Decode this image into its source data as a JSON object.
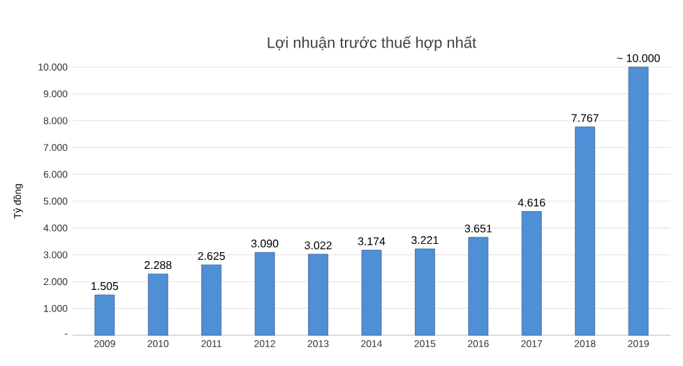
{
  "chart_data": {
    "type": "bar",
    "title": "Lợi nhuận trước thuế hợp nhất",
    "ylabel": "Tỷ đồng",
    "categories": [
      "2009",
      "2010",
      "2011",
      "2012",
      "2013",
      "2014",
      "2015",
      "2016",
      "2017",
      "2018",
      "2019"
    ],
    "values": [
      1505,
      2288,
      2625,
      3090,
      3022,
      3174,
      3221,
      3651,
      4616,
      7767,
      10000
    ],
    "value_labels": [
      "1.505",
      "2.288",
      "2.625",
      "3.090",
      "3.022",
      "3.174",
      "3.221",
      "3.651",
      "4.616",
      "7.767",
      "~ 10.000"
    ],
    "color": "#4f8fd6",
    "ylim": [
      0,
      10000
    ],
    "yticks": [
      {
        "value": 0,
        "label": "-"
      },
      {
        "value": 1000,
        "label": "1.000"
      },
      {
        "value": 2000,
        "label": "2.000"
      },
      {
        "value": 3000,
        "label": "3.000"
      },
      {
        "value": 4000,
        "label": "4.000"
      },
      {
        "value": 5000,
        "label": "5.000"
      },
      {
        "value": 6000,
        "label": "6.000"
      },
      {
        "value": 7000,
        "label": "7.000"
      },
      {
        "value": 8000,
        "label": "8.000"
      },
      {
        "value": 9000,
        "label": "9.000"
      },
      {
        "value": 10000,
        "label": "10.000"
      }
    ],
    "grid": "y"
  }
}
